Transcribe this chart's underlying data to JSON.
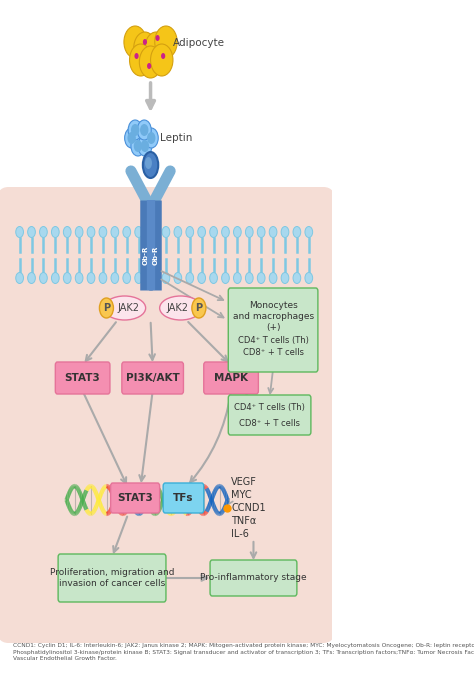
{
  "background_color": "#ffffff",
  "cell_bg_color": "#f5ddd5",
  "adipocyte_label": "Adipocyte",
  "leptin_label": "Leptin",
  "receptor_labels": [
    "Ob-R",
    "Ob-R"
  ],
  "jak2_label": "JAK2",
  "p_label": "P",
  "stat3_box": "STAT3",
  "pi3k_box": "PI3K/AKT",
  "mapk_box": "MAPK",
  "stat3_dna_label": "STAT3",
  "tfs_label": "TFs",
  "mono_line1": "Monocytes",
  "mono_line2": "and macrophages",
  "mono_plus": "(+)",
  "cd4_th_label": "CD4⁺ T cells (Th)",
  "cd8_label": "CD8⁺ + T cells",
  "cd4_th2_label": "CD4⁺ T cells (Th)",
  "cd8_2_label": "CD8⁺ + T cells",
  "vegf_label": "VEGF",
  "myc_label": "MYC",
  "ccnd1_label": "CCND1",
  "tnfa_label": "TNFα",
  "il6_label": "IL-6",
  "prolif_box": "Proliferation, migration and\ninvasion of cancer cells",
  "proinflam_box": "Pro-inflammatory stage",
  "footnote": "CCND1: Cyclin D1; IL-6: Interleukin-6; JAK2: Janus kinase 2; MAPK: Mitogen-activated protein kinase; MYC: Myelocytomatosis Oncogene; Ob-R: leptin receptor; PI3K/AKT:\nPhosphatidylinositol 3-kinase/protein kinase B; STAT3: Signal transducer and activator of transcription 3; TFs: Transcription factors;TNFα: Tumor Necrosis Factor; VEGF:\nVascular Endothelial Growth Factor.",
  "receptor_light": "#7bafd4",
  "receptor_dark": "#4a7ab8",
  "receptor_stem": "#3a6aa8",
  "membrane_head": "#a8d8ee",
  "membrane_tail": "#7ec8e3",
  "pink_box_color": "#f48fb1",
  "pink_border": "#e57399",
  "green_box_color": "#c8e6c9",
  "green_border_color": "#5db85d",
  "blue_box_color": "#7dd4f0",
  "blue_border": "#3ab0d8",
  "jak2_oval_color": "#fce4ec",
  "jak2_oval_border": "#e57399",
  "p_circle_color": "#f9c74f",
  "p_circle_border": "#e0a020",
  "arrow_color": "#aaaaaa",
  "dna_green": "#4caf50",
  "dna_yellow": "#ffeb3b",
  "dna_red": "#f44336",
  "dna_blue": "#1565c0",
  "dna_orange": "#ff9800",
  "leptin_ball_color": "#90caf9",
  "leptin_ball_dark": "#4a90d9",
  "adipocyte_color": "#f5c518",
  "adipocyte_edge": "#d4a010",
  "adipocyte_dot": "#cc2288"
}
